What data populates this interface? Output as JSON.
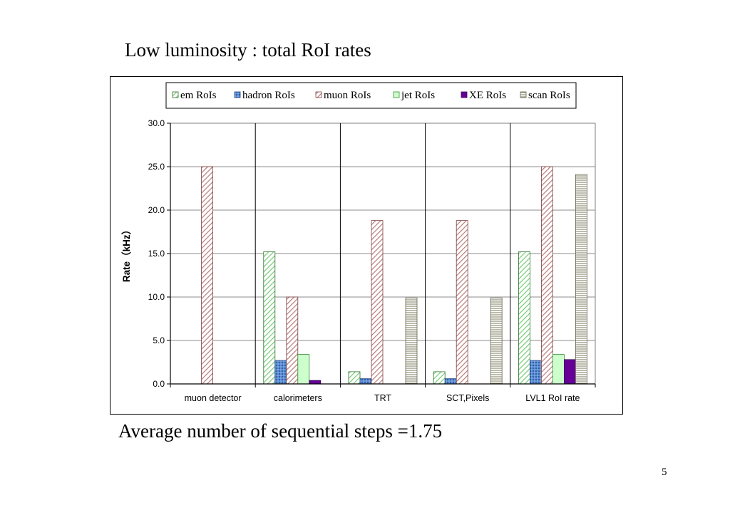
{
  "slide": {
    "title": "Low luminosity : total RoI rates",
    "footer": "Average number of sequential steps =1.75",
    "page_number": "5"
  },
  "chart_data": {
    "type": "bar",
    "title": "",
    "xlabel": "",
    "ylabel": "Rate（kHz）",
    "ylim": [
      0,
      30
    ],
    "yticks": [
      "0.0",
      "5.0",
      "10.0",
      "15.0",
      "20.0",
      "25.0",
      "30.0"
    ],
    "grid": true,
    "legend_position": "top",
    "categories": [
      "muon detector",
      "calorimeters",
      "TRT",
      "SCT,Pixels",
      "LVL1 RoI rate"
    ],
    "series": [
      {
        "name": "em RoIs",
        "color": "#7fd07f",
        "pattern": "diagonal-stripes",
        "values": [
          0,
          15.2,
          1.4,
          1.4,
          15.2
        ]
      },
      {
        "name": "hadron RoIs",
        "color": "#5b8fd6",
        "pattern": "dots",
        "values": [
          0,
          2.7,
          0.6,
          0.6,
          2.7
        ]
      },
      {
        "name": "muon RoIs",
        "color": "#c98a8a",
        "pattern": "diagonal-stripes",
        "values": [
          25.0,
          10.0,
          18.8,
          18.8,
          25.0
        ]
      },
      {
        "name": "jet RoIs",
        "color": "#ccffcc",
        "pattern": "solid",
        "values": [
          0,
          3.4,
          0,
          0,
          3.4
        ]
      },
      {
        "name": "XE RoIs",
        "color": "#660099",
        "pattern": "solid",
        "values": [
          0,
          0.4,
          0,
          0,
          2.8
        ]
      },
      {
        "name": "scan RoIs",
        "color": "#a8a890",
        "pattern": "horizontal-stripes",
        "values": [
          0,
          0,
          9.9,
          9.9,
          24.1
        ]
      }
    ]
  }
}
